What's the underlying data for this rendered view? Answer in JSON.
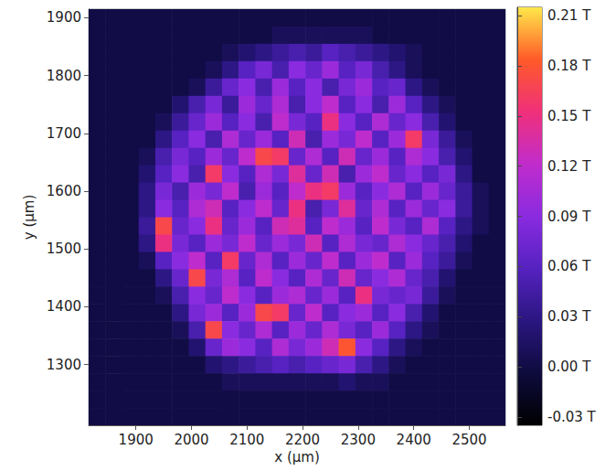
{
  "chart_data": {
    "type": "heatmap",
    "x_label": "x (μm)",
    "y_label": "y (μm)",
    "xlim": [
      1815,
      2565
    ],
    "xticks": [
      1900,
      2000,
      2100,
      2200,
      2300,
      2400,
      2500
    ],
    "ylim": [
      1195,
      1915
    ],
    "yticks": [
      1300,
      1400,
      1500,
      1600,
      1700,
      1800,
      1900
    ],
    "x": [
      1830,
      1860,
      1890,
      1920,
      1950,
      1980,
      2010,
      2040,
      2070,
      2100,
      2130,
      2160,
      2190,
      2220,
      2250,
      2280,
      2310,
      2340,
      2370,
      2400,
      2430,
      2460,
      2490,
      2520,
      2550
    ],
    "y": [
      1900,
      1870,
      1840,
      1810,
      1780,
      1750,
      1720,
      1690,
      1660,
      1630,
      1600,
      1570,
      1540,
      1510,
      1480,
      1450,
      1420,
      1390,
      1360,
      1330,
      1300,
      1270,
      1240,
      1210
    ],
    "values": [
      [
        0,
        0,
        0,
        0,
        0,
        0,
        0,
        0,
        0,
        0,
        0,
        0,
        0,
        0,
        0,
        0,
        0,
        0,
        0,
        0,
        0,
        0,
        0,
        0,
        0
      ],
      [
        0,
        0,
        0,
        0,
        0,
        0,
        0,
        0,
        0,
        0,
        0,
        0.01,
        0.01,
        0.01,
        0.01,
        0.01,
        0.01,
        0,
        0,
        0,
        0,
        0,
        0,
        0,
        0
      ],
      [
        0,
        0,
        0,
        0,
        0,
        0,
        0,
        0,
        0.01,
        0.02,
        0.03,
        0.04,
        0.05,
        0.04,
        0.06,
        0.05,
        0.04,
        0.03,
        0.02,
        0.01,
        0,
        0,
        0,
        0,
        0
      ],
      [
        0,
        0,
        0,
        0,
        0,
        0,
        0,
        0.01,
        0.03,
        0.06,
        0.08,
        0.05,
        0.09,
        0.07,
        0.1,
        0.06,
        0.08,
        0.05,
        0.03,
        0.01,
        0,
        0,
        0,
        0,
        0
      ],
      [
        0,
        0,
        0,
        0,
        0,
        0,
        0.01,
        0.04,
        0.07,
        0.09,
        0.05,
        0.1,
        0.06,
        0.09,
        0.05,
        0.08,
        0.1,
        0.06,
        0.07,
        0.03,
        0.01,
        0,
        0,
        0,
        0
      ],
      [
        0,
        0,
        0,
        0,
        0,
        0.02,
        0.05,
        0.08,
        0.04,
        0.1,
        0.07,
        0.11,
        0.05,
        0.09,
        0.12,
        0.06,
        0.09,
        0.05,
        0.1,
        0.06,
        0.03,
        0.01,
        0,
        0,
        0
      ],
      [
        0,
        0,
        0,
        0,
        0.01,
        0.04,
        0.07,
        0.1,
        0.06,
        0.09,
        0.05,
        0.12,
        0.08,
        0.06,
        0.15,
        0.09,
        0.06,
        0.11,
        0.07,
        0.09,
        0.05,
        0.02,
        0,
        0,
        0
      ],
      [
        0,
        0,
        0,
        0,
        0.03,
        0.06,
        0.09,
        0.05,
        0.11,
        0.07,
        0.1,
        0.06,
        0.13,
        0.05,
        0.1,
        0.08,
        0.12,
        0.06,
        0.1,
        0.16,
        0.08,
        0.04,
        0.01,
        0,
        0
      ],
      [
        0,
        0,
        0,
        0.01,
        0.05,
        0.08,
        0.06,
        0.1,
        0.07,
        0.12,
        0.17,
        0.16,
        0.07,
        0.11,
        0.06,
        0.13,
        0.07,
        0.1,
        0.06,
        0.11,
        0.09,
        0.05,
        0.02,
        0,
        0
      ],
      [
        0,
        0,
        0,
        0.02,
        0.06,
        0.09,
        0.05,
        0.16,
        0.09,
        0.06,
        0.11,
        0.08,
        0.14,
        0.07,
        0.13,
        0.05,
        0.1,
        0.12,
        0.07,
        0.09,
        0.06,
        0.08,
        0.03,
        0,
        0
      ],
      [
        0,
        0,
        0,
        0.03,
        0.08,
        0.05,
        0.1,
        0.08,
        0.12,
        0.05,
        0.1,
        0.06,
        0.12,
        0.15,
        0.16,
        0.1,
        0.06,
        0.09,
        0.11,
        0.06,
        0.1,
        0.07,
        0.04,
        0.01,
        0
      ],
      [
        0,
        0,
        0,
        0.03,
        0.09,
        0.06,
        0.11,
        0.13,
        0.06,
        0.09,
        0.12,
        0.07,
        0.15,
        0.05,
        0.08,
        0.14,
        0.07,
        0.11,
        0.06,
        0.1,
        0.07,
        0.09,
        0.04,
        0.01,
        0
      ],
      [
        0,
        0,
        0,
        0.04,
        0.17,
        0.07,
        0.09,
        0.15,
        0.07,
        0.1,
        0.06,
        0.13,
        0.14,
        0.06,
        0.12,
        0.1,
        0.06,
        0.12,
        0.08,
        0.06,
        0.11,
        0.06,
        0.03,
        0.01,
        0
      ],
      [
        0,
        0,
        0,
        0.03,
        0.15,
        0.08,
        0.06,
        0.1,
        0.08,
        0.12,
        0.07,
        0.1,
        0.08,
        0.13,
        0.06,
        0.11,
        0.08,
        0.07,
        0.11,
        0.09,
        0.07,
        0.05,
        0.02,
        0,
        0
      ],
      [
        0,
        0,
        0,
        0.01,
        0.06,
        0.09,
        0.12,
        0.06,
        0.16,
        0.07,
        0.11,
        0.06,
        0.1,
        0.07,
        0.12,
        0.06,
        0.1,
        0.12,
        0.06,
        0.1,
        0.06,
        0.04,
        0.01,
        0,
        0
      ],
      [
        0,
        0,
        0,
        0,
        0.03,
        0.07,
        0.17,
        0.08,
        0.11,
        0.06,
        0.12,
        0.09,
        0.06,
        0.11,
        0.07,
        0.13,
        0.07,
        0.09,
        0.11,
        0.07,
        0.05,
        0.02,
        0,
        0,
        0
      ],
      [
        0,
        0,
        0,
        0,
        0.01,
        0.05,
        0.09,
        0.07,
        0.12,
        0.09,
        0.06,
        0.1,
        0.11,
        0.07,
        0.1,
        0.06,
        0.15,
        0.08,
        0.07,
        0.08,
        0.04,
        0.01,
        0,
        0,
        0
      ],
      [
        0,
        0,
        0,
        0,
        0,
        0.03,
        0.08,
        0.1,
        0.06,
        0.1,
        0.17,
        0.16,
        0.07,
        0.12,
        0.06,
        0.09,
        0.1,
        0.06,
        0.09,
        0.05,
        0.02,
        0,
        0,
        0,
        0
      ],
      [
        0,
        0,
        0,
        0,
        0,
        0.01,
        0.05,
        0.17,
        0.09,
        0.07,
        0.11,
        0.06,
        0.1,
        0.07,
        0.11,
        0.08,
        0.06,
        0.1,
        0.06,
        0.03,
        0.01,
        0,
        0,
        0,
        0
      ],
      [
        0,
        0,
        0,
        0,
        0,
        0,
        0.02,
        0.07,
        0.1,
        0.09,
        0.06,
        0.11,
        0.08,
        0.1,
        0.13,
        0.18,
        0.09,
        0.06,
        0.03,
        0.01,
        0,
        0,
        0,
        0,
        0
      ],
      [
        0,
        0,
        0,
        0,
        0,
        0,
        0,
        0.02,
        0.03,
        0.04,
        0.05,
        0.06,
        0.05,
        0.06,
        0.07,
        0.08,
        0.05,
        0.03,
        0.01,
        0,
        0,
        0,
        0,
        0,
        0
      ],
      [
        0,
        0,
        0,
        0,
        0,
        0,
        0,
        0,
        0.01,
        0.01,
        0.01,
        0.01,
        0.01,
        0.01,
        0.01,
        0.02,
        0.01,
        0.01,
        0,
        0,
        0,
        0,
        0,
        0,
        0
      ],
      [
        0,
        0,
        0,
        0,
        0,
        0,
        0,
        0,
        0,
        0,
        0,
        0,
        0,
        0,
        0,
        0,
        0,
        0,
        0,
        0,
        0,
        0,
        0,
        0,
        0
      ],
      [
        0,
        0,
        0,
        0,
        0,
        0,
        0,
        0,
        0,
        0,
        0,
        0,
        0,
        0,
        0,
        0,
        0,
        0,
        0,
        0,
        0,
        0,
        0,
        0,
        0
      ]
    ],
    "colorbar": {
      "range": [
        -0.035,
        0.215
      ],
      "ticks": [
        {
          "value": -0.03,
          "label": "-0.03 T"
        },
        {
          "value": 0,
          "label": "0.00 T"
        },
        {
          "value": 0.03,
          "label": "0.03 T"
        },
        {
          "value": 0.06,
          "label": "0.06 T"
        },
        {
          "value": 0.09,
          "label": "0.09 T"
        },
        {
          "value": 0.12,
          "label": "0.12 T"
        },
        {
          "value": 0.15,
          "label": "0.15 T"
        },
        {
          "value": 0.18,
          "label": "0.18 T"
        },
        {
          "value": 0.21,
          "label": "0.21 T"
        }
      ]
    }
  }
}
